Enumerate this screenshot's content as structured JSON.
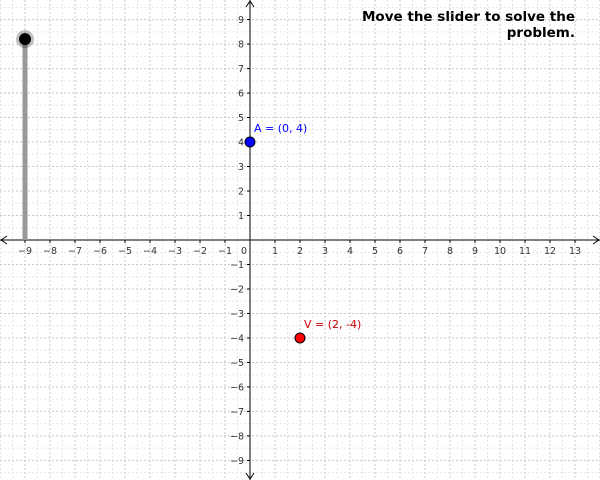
{
  "instruction": "Move the slider to solve the problem.",
  "graph": {
    "x_range": [
      -10,
      14
    ],
    "y_range": [
      -9.8,
      9.8
    ],
    "x_ticks": [
      -9,
      -8,
      -7,
      -6,
      -5,
      -4,
      -3,
      -2,
      -1,
      0,
      1,
      2,
      3,
      4,
      5,
      6,
      7,
      8,
      9,
      10,
      11,
      12,
      13
    ],
    "y_ticks": [
      9,
      8,
      7,
      6,
      5,
      4,
      3,
      2,
      1,
      -1,
      -2,
      -3,
      -4,
      -5,
      -6,
      -7,
      -8,
      -9
    ],
    "minor_grid_step": 0.5,
    "grid": true,
    "minus_sign": "−"
  },
  "slider": {
    "x": -9,
    "min": 0,
    "max": 8.2,
    "value": 8.2,
    "color": "#999999",
    "handle_color": "#000000"
  },
  "points": [
    {
      "name": "point-A",
      "label": "A = (0, 4)",
      "x": 0,
      "y": 4,
      "color": "#0000ff",
      "label_color": "#0000ff"
    },
    {
      "name": "point-V",
      "label": "V = (2, -4)",
      "x": 2,
      "y": -4,
      "color": "#ff0000",
      "label_color": "#cc0000"
    }
  ],
  "colors": {
    "axis": "#000000",
    "grid_major": "#c8c8c8",
    "grid_minor": "#e6e6e6",
    "tick_label": "#333333"
  }
}
